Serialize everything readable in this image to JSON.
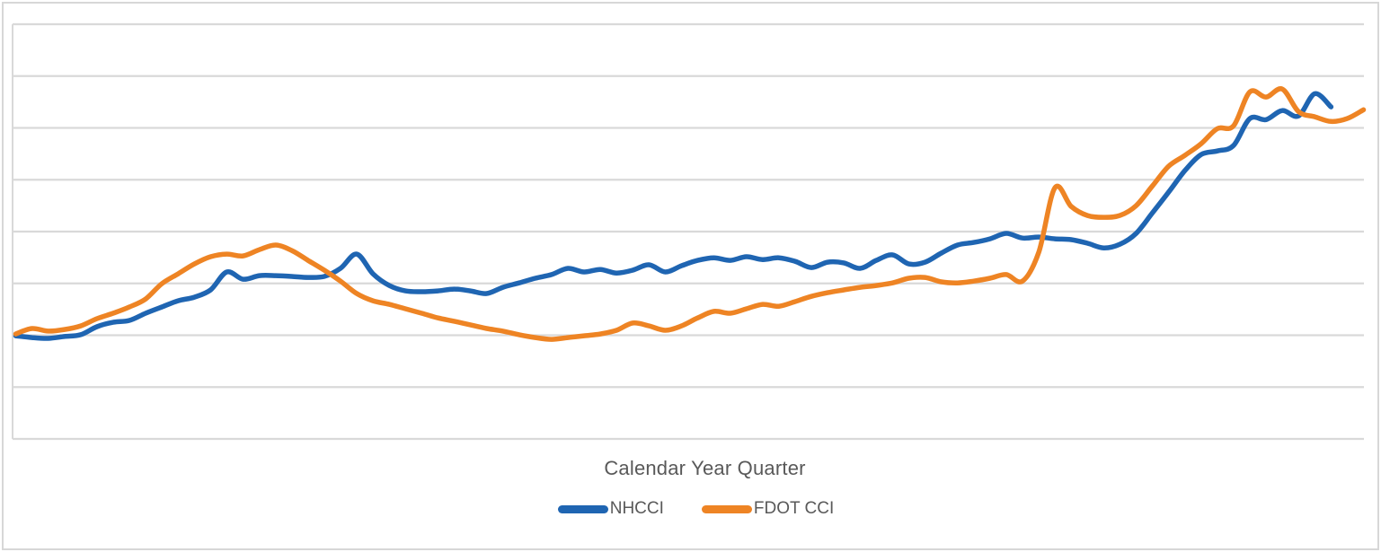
{
  "chart": {
    "x_axis_title": "Calendar Year Quarter",
    "legend": [
      {
        "label": "NHCCI",
        "color": "#1F65B2"
      },
      {
        "label": "FDOT CCI",
        "color": "#EE8424"
      }
    ]
  },
  "colors": {
    "background": "#FFFFFF",
    "border": "#D7D7D7",
    "gridline": "#D9D9D9",
    "axis_line": "#D9D9D9",
    "text": "#595959",
    "nhcci_line": "#1F65B2",
    "fdot_line": "#EE8424"
  },
  "chart_data": {
    "type": "line",
    "title": "",
    "xlabel": "Calendar Year Quarter",
    "ylabel": "",
    "x_tick_labels": "none shown",
    "y_tick_labels": "none shown (horizontal gridlines only)",
    "x_note": "x values are consecutive calendar-year quarters (quarter index 0..83); both series start at the same quarter, NHCCI ends 2 quarters earlier than FDOT CCI",
    "y_note": "values are cost-index levels estimated from gridlines; series start on a gridline (set = 1.0), gridline spacing assumed 0.2",
    "ylim": [
      0.55,
      2.27
    ],
    "gridline_values": [
      0.6,
      0.8,
      1.0,
      1.2,
      1.4,
      1.6,
      1.8,
      2.0,
      2.2
    ],
    "grid": true,
    "smooth": true,
    "legend_position": "bottom",
    "series": [
      {
        "name": "NHCCI",
        "color": "#1F65B2",
        "values": [
          0.998,
          0.991,
          0.988,
          0.995,
          1.002,
          1.033,
          1.05,
          1.057,
          1.085,
          1.109,
          1.133,
          1.147,
          1.175,
          1.244,
          1.216,
          1.23,
          1.23,
          1.227,
          1.223,
          1.227,
          1.258,
          1.313,
          1.237,
          1.192,
          1.171,
          1.168,
          1.171,
          1.178,
          1.171,
          1.161,
          1.185,
          1.202,
          1.22,
          1.234,
          1.258,
          1.244,
          1.254,
          1.24,
          1.251,
          1.272,
          1.244,
          1.268,
          1.289,
          1.299,
          1.289,
          1.303,
          1.292,
          1.299,
          1.285,
          1.261,
          1.282,
          1.279,
          1.258,
          1.289,
          1.31,
          1.275,
          1.282,
          1.317,
          1.348,
          1.358,
          1.372,
          1.393,
          1.375,
          1.379,
          1.372,
          1.369,
          1.355,
          1.337,
          1.351,
          1.393,
          1.472,
          1.552,
          1.635,
          1.697,
          1.711,
          1.732,
          1.836,
          1.832,
          1.867,
          1.846,
          1.932,
          1.881
        ]
      },
      {
        "name": "FDOT CCI",
        "color": "#EE8424",
        "values": [
          1.005,
          1.026,
          1.016,
          1.022,
          1.036,
          1.064,
          1.085,
          1.109,
          1.14,
          1.199,
          1.237,
          1.275,
          1.303,
          1.313,
          1.306,
          1.33,
          1.348,
          1.327,
          1.289,
          1.251,
          1.209,
          1.161,
          1.133,
          1.119,
          1.102,
          1.085,
          1.067,
          1.054,
          1.04,
          1.026,
          1.016,
          1.002,
          0.991,
          0.984,
          0.991,
          0.998,
          1.005,
          1.019,
          1.047,
          1.036,
          1.019,
          1.036,
          1.067,
          1.092,
          1.085,
          1.102,
          1.119,
          1.112,
          1.13,
          1.15,
          1.164,
          1.175,
          1.185,
          1.192,
          1.202,
          1.22,
          1.223,
          1.206,
          1.202,
          1.209,
          1.22,
          1.234,
          1.209,
          1.32,
          1.569,
          1.497,
          1.462,
          1.455,
          1.462,
          1.5,
          1.576,
          1.652,
          1.694,
          1.739,
          1.797,
          1.808,
          1.939,
          1.919,
          1.95,
          1.863,
          1.843,
          1.825,
          1.836,
          1.87
        ]
      }
    ]
  }
}
